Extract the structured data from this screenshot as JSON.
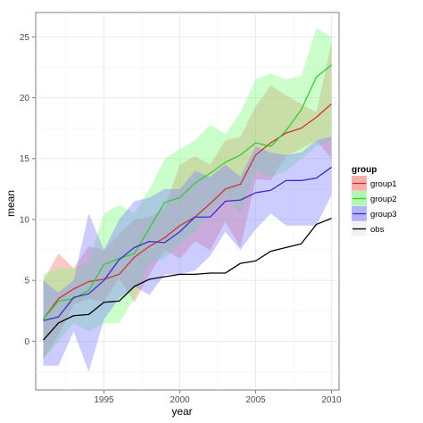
{
  "chart_data": {
    "type": "line",
    "title": "",
    "xlabel": "year",
    "ylabel": "mean",
    "xlim": [
      1990.5,
      2010.5
    ],
    "ylim": [
      -4,
      27
    ],
    "x_ticks": [
      1995,
      2000,
      2005,
      2010
    ],
    "y_ticks": [
      0,
      5,
      10,
      15,
      20,
      25
    ],
    "x_tick_labels": [
      "1995",
      "2000",
      "2005",
      "2010"
    ],
    "y_tick_labels": [
      "0",
      "5",
      "10",
      "15",
      "20",
      "25"
    ],
    "grid": true,
    "legend": {
      "title": "group",
      "position": "right"
    },
    "x": [
      1991,
      1992,
      1993,
      1994,
      1995,
      1996,
      1997,
      1998,
      1999,
      2000,
      2001,
      2002,
      2003,
      2004,
      2005,
      2006,
      2007,
      2008,
      2009,
      2010
    ],
    "series": [
      {
        "name": "group1",
        "color": "#cc3333",
        "fill": "#f8766d",
        "values": [
          1.8,
          3.5,
          4.3,
          4.9,
          5.1,
          5.5,
          6.9,
          7.8,
          8.5,
          9.5,
          10.2,
          11.3,
          12.5,
          12.9,
          15.3,
          16.3,
          17.1,
          17.5,
          18.4,
          19.5
        ],
        "lower": [
          -1.5,
          0.5,
          3.0,
          3.5,
          3.2,
          5.2,
          3.2,
          5.5,
          7.5,
          6.8,
          8.2,
          7.5,
          9.8,
          7.7,
          13.3,
          13.2,
          15.2,
          15.8,
          16.5,
          15.0
        ],
        "upper": [
          5.0,
          7.2,
          6.0,
          7.8,
          7.5,
          8.8,
          10.0,
          10.2,
          11.0,
          14.5,
          15.2,
          14.5,
          16.5,
          16.8,
          19.3,
          21.0,
          20.2,
          19.5,
          18.8,
          24.5
        ]
      },
      {
        "name": "group2",
        "color": "#33cc33",
        "fill": "#7cfc7c",
        "values": [
          1.8,
          3.3,
          3.5,
          4.2,
          6.3,
          6.8,
          7.2,
          9.3,
          11.4,
          11.8,
          13.0,
          13.8,
          14.7,
          15.3,
          16.3,
          16.0,
          17.3,
          19.0,
          21.7,
          22.7
        ],
        "lower": [
          -1.5,
          0.0,
          1.5,
          0.8,
          1.5,
          1.5,
          3.5,
          6.5,
          6.8,
          8.0,
          9.0,
          10.5,
          12.0,
          10.5,
          14.0,
          13.5,
          14.0,
          15.0,
          16.0,
          16.5
        ],
        "upper": [
          5.5,
          6.0,
          6.0,
          6.5,
          10.5,
          11.2,
          10.5,
          12.5,
          15.0,
          15.8,
          16.5,
          17.8,
          17.0,
          18.8,
          21.5,
          22.0,
          21.5,
          21.8,
          25.7,
          25.0
        ]
      },
      {
        "name": "group3",
        "color": "#3333cc",
        "fill": "#8080ff",
        "values": [
          1.7,
          2.0,
          3.6,
          3.9,
          5.0,
          6.7,
          7.7,
          8.2,
          8.1,
          9.0,
          10.2,
          10.2,
          11.5,
          11.6,
          12.2,
          12.4,
          13.2,
          13.2,
          13.4,
          14.3
        ],
        "lower": [
          -2.0,
          -2.0,
          0.8,
          -2.5,
          1.8,
          3.5,
          4.5,
          3.8,
          5.5,
          5.5,
          5.8,
          7.0,
          9.0,
          7.5,
          9.2,
          10.5,
          9.5,
          9.5,
          9.5,
          12.0
        ],
        "upper": [
          5.0,
          4.0,
          5.0,
          10.5,
          7.5,
          10.0,
          11.5,
          11.8,
          12.5,
          12.5,
          14.0,
          13.5,
          14.5,
          13.5,
          16.0,
          15.5,
          15.3,
          15.5,
          16.5,
          16.8
        ]
      },
      {
        "name": "obs",
        "color": "#000000",
        "values": [
          0.1,
          1.5,
          2.1,
          2.2,
          3.2,
          3.3,
          4.5,
          5.1,
          5.3,
          5.5,
          5.5,
          5.6,
          5.6,
          6.4,
          6.6,
          7.4,
          7.7,
          8.0,
          9.6,
          10.1
        ]
      }
    ]
  }
}
